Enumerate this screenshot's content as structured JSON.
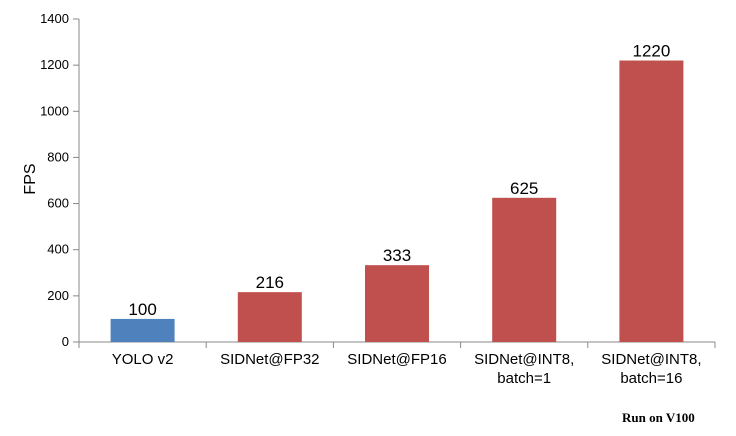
{
  "chart_data": {
    "type": "bar",
    "categories": [
      [
        "YOLO v2"
      ],
      [
        "SIDNet@FP32"
      ],
      [
        "SIDNet@FP16"
      ],
      [
        "SIDNet@INT8,",
        "batch=1"
      ],
      [
        "SIDNet@INT8,",
        "batch=16"
      ]
    ],
    "values": [
      100,
      216,
      333,
      625,
      1220
    ],
    "data_labels": [
      "100",
      "216",
      "333",
      "625",
      "1220"
    ],
    "bar_colors": [
      "#4f81bd",
      "#c0504d",
      "#c0504d",
      "#c0504d",
      "#c0504d"
    ],
    "ylabel": "FPS",
    "xlabel": "",
    "title": "",
    "ylim": [
      0,
      1400
    ],
    "yticks": [
      0,
      200,
      400,
      600,
      800,
      1000,
      1200,
      1400
    ],
    "grid": false,
    "legend": "none"
  },
  "footnote": "Run on V100"
}
